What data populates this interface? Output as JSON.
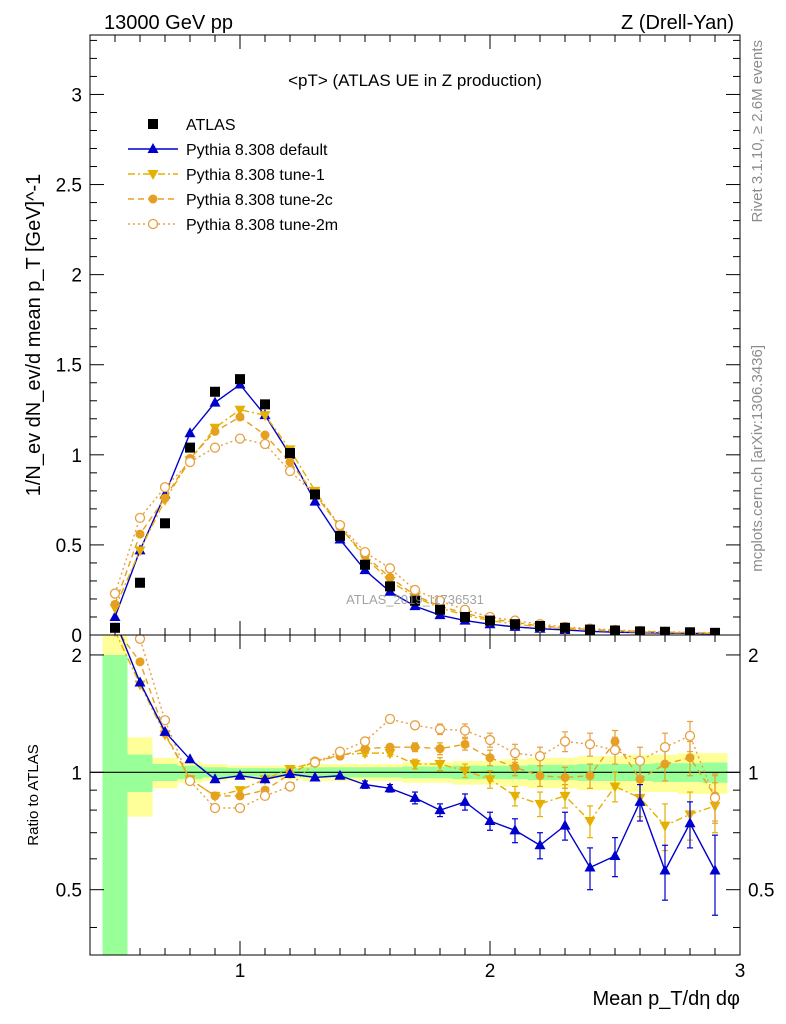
{
  "header": {
    "energy": "13000 GeV pp",
    "process": "Z (Drell-Yan)"
  },
  "side_labels": {
    "rivet": "Rivet 3.1.10, ≥ 2.6M events",
    "mcplots": "mcplots.cern.ch [arXiv:1306.3436]"
  },
  "chart_data": [
    {
      "type": "scatter",
      "panel": "main",
      "title": "<pT> (ATLAS UE in Z production)",
      "ylabel": "1/N_ev dN_ev/d mean p_T [GeV]^-1",
      "xlim": [
        0.4,
        3.0
      ],
      "ylim": [
        0,
        3.33
      ],
      "yticks": [
        "0",
        "0.5",
        "1",
        "1.5",
        "2",
        "2.5",
        "3"
      ],
      "watermark": "ATLAS_2019_I1736531",
      "legend_position": "top-left",
      "x": [
        0.5,
        0.6,
        0.7,
        0.8,
        0.9,
        1.0,
        1.1,
        1.2,
        1.3,
        1.4,
        1.5,
        1.6,
        1.7,
        1.8,
        1.9,
        2.0,
        2.1,
        2.2,
        2.3,
        2.4,
        2.5,
        2.6,
        2.7,
        2.8,
        2.9
      ],
      "series": [
        {
          "name": "ATLAS",
          "color": "#000000",
          "marker": "square",
          "line": "none",
          "values": [
            0.04,
            0.29,
            0.62,
            1.04,
            1.35,
            1.42,
            1.28,
            1.01,
            0.78,
            0.55,
            0.39,
            0.27,
            0.19,
            0.14,
            0.1,
            0.08,
            0.06,
            0.05,
            0.04,
            0.03,
            0.025,
            0.02,
            0.018,
            0.015,
            0.012
          ]
        },
        {
          "name": "Pythia 8.308 default",
          "color": "#0000cc",
          "marker": "triangle-up",
          "line": "solid",
          "values": [
            0.1,
            0.47,
            0.78,
            1.12,
            1.29,
            1.39,
            1.22,
            1.0,
            0.74,
            0.53,
            0.36,
            0.24,
            0.16,
            0.11,
            0.08,
            0.06,
            0.045,
            0.035,
            0.028,
            0.02,
            0.016,
            0.013,
            0.011,
            0.009,
            0.007
          ]
        },
        {
          "name": "Pythia 8.308 tune-1",
          "color": "#e6b000",
          "marker": "triangle-down",
          "line": "dashdot",
          "values": [
            0.15,
            0.47,
            0.75,
            0.97,
            1.15,
            1.25,
            1.22,
            1.03,
            0.8,
            0.6,
            0.43,
            0.3,
            0.21,
            0.15,
            0.11,
            0.08,
            0.06,
            0.045,
            0.035,
            0.027,
            0.021,
            0.017,
            0.014,
            0.011,
            0.009
          ]
        },
        {
          "name": "Pythia 8.308 tune-2c",
          "color": "#e6a020",
          "marker": "circle",
          "line": "dashed",
          "values": [
            0.17,
            0.56,
            0.76,
            0.98,
            1.13,
            1.21,
            1.11,
            0.96,
            0.78,
            0.6,
            0.44,
            0.32,
            0.22,
            0.16,
            0.12,
            0.09,
            0.07,
            0.05,
            0.04,
            0.03,
            0.025,
            0.02,
            0.016,
            0.013,
            0.01
          ]
        },
        {
          "name": "Pythia 8.308 tune-2m",
          "color": "#e6a040",
          "marker": "circle-open",
          "line": "dotted",
          "values": [
            0.23,
            0.65,
            0.82,
            0.96,
            1.04,
            1.09,
            1.06,
            0.91,
            0.78,
            0.61,
            0.46,
            0.37,
            0.25,
            0.19,
            0.14,
            0.1,
            0.08,
            0.06,
            0.045,
            0.035,
            0.028,
            0.022,
            0.018,
            0.015,
            0.012
          ]
        }
      ]
    },
    {
      "type": "scatter",
      "panel": "ratio",
      "ylabel": "Ratio to ATLAS",
      "xlabel": "Mean p_T/dη dφ",
      "xlim": [
        0.4,
        3.0
      ],
      "ylim": [
        0.34,
        2.25
      ],
      "yticks_left": [
        "0.5",
        "1",
        "2"
      ],
      "yticks_right": [
        "0.5",
        "1",
        "2"
      ],
      "xticks": [
        "1",
        "2",
        "3"
      ],
      "reference_line": 1,
      "x": [
        0.5,
        0.6,
        0.7,
        0.8,
        0.9,
        1.0,
        1.1,
        1.2,
        1.3,
        1.4,
        1.5,
        1.6,
        1.7,
        1.8,
        1.9,
        2.0,
        2.1,
        2.2,
        2.3,
        2.4,
        2.5,
        2.6,
        2.7,
        2.8,
        2.9
      ],
      "bands": {
        "yellow_half_width": [
          1.5,
          0.23,
          0.09,
          0.06,
          0.05,
          0.04,
          0.04,
          0.04,
          0.05,
          0.05,
          0.05,
          0.05,
          0.06,
          0.06,
          0.07,
          0.07,
          0.08,
          0.09,
          0.09,
          0.1,
          0.1,
          0.11,
          0.11,
          0.12,
          0.12
        ],
        "green_half_width": [
          1.0,
          0.11,
          0.05,
          0.04,
          0.03,
          0.025,
          0.025,
          0.025,
          0.03,
          0.03,
          0.03,
          0.03,
          0.035,
          0.035,
          0.04,
          0.04,
          0.04,
          0.045,
          0.045,
          0.05,
          0.05,
          0.05,
          0.055,
          0.055,
          0.06
        ]
      },
      "series": [
        {
          "name": "Pythia 8.308 default",
          "color": "#0000cc",
          "marker": "triangle-up",
          "line": "solid",
          "values": [
            2.45,
            1.7,
            1.27,
            1.08,
            0.96,
            0.98,
            0.96,
            0.99,
            0.97,
            0.98,
            0.93,
            0.91,
            0.86,
            0.8,
            0.84,
            0.75,
            0.71,
            0.65,
            0.73,
            0.57,
            0.61,
            0.84,
            0.56,
            0.74,
            0.56
          ],
          "errors": [
            0.04,
            0.01,
            0.01,
            0.01,
            0.01,
            0.01,
            0.01,
            0.01,
            0.01,
            0.01,
            0.02,
            0.02,
            0.03,
            0.03,
            0.04,
            0.04,
            0.05,
            0.05,
            0.06,
            0.07,
            0.07,
            0.09,
            0.09,
            0.1,
            0.13
          ]
        },
        {
          "name": "Pythia 8.308 tune-1",
          "color": "#e6b000",
          "marker": "triangle-down",
          "line": "dashdot",
          "values": [
            2.3,
            1.68,
            1.25,
            0.96,
            0.87,
            0.9,
            0.96,
            1.02,
            1.06,
            1.11,
            1.12,
            1.12,
            1.05,
            1.05,
            1.01,
            0.96,
            0.87,
            0.83,
            0.87,
            0.75,
            0.92,
            0.86,
            0.73,
            0.78,
            0.82
          ],
          "errors": [
            0.04,
            0.01,
            0.01,
            0.01,
            0.01,
            0.01,
            0.01,
            0.01,
            0.01,
            0.02,
            0.02,
            0.02,
            0.03,
            0.04,
            0.04,
            0.05,
            0.05,
            0.06,
            0.06,
            0.07,
            0.08,
            0.09,
            0.1,
            0.11,
            0.12
          ]
        },
        {
          "name": "Pythia 8.308 tune-2c",
          "color": "#e6a020",
          "marker": "circle",
          "line": "dashed",
          "values": [
            2.35,
            1.92,
            1.26,
            0.96,
            0.87,
            0.87,
            0.9,
            0.99,
            1.07,
            1.1,
            1.15,
            1.16,
            1.16,
            1.15,
            1.18,
            1.09,
            1.03,
            0.98,
            0.97,
            0.98,
            1.2,
            0.96,
            1.05,
            1.09,
            0.87
          ],
          "errors": [
            0.04,
            0.01,
            0.01,
            0.01,
            0.01,
            0.01,
            0.01,
            0.01,
            0.01,
            0.02,
            0.02,
            0.02,
            0.03,
            0.04,
            0.04,
            0.05,
            0.05,
            0.06,
            0.06,
            0.07,
            0.08,
            0.09,
            0.1,
            0.11,
            0.12
          ]
        },
        {
          "name": "Pythia 8.308 tune-2m",
          "color": "#e6a040",
          "marker": "circle-open",
          "line": "dotted",
          "values": [
            2.4,
            2.2,
            1.36,
            0.95,
            0.81,
            0.81,
            0.87,
            0.92,
            1.06,
            1.13,
            1.2,
            1.37,
            1.32,
            1.29,
            1.28,
            1.21,
            1.12,
            1.1,
            1.2,
            1.18,
            1.14,
            1.07,
            1.16,
            1.24,
            0.86
          ],
          "errors": [
            0.04,
            0.01,
            0.01,
            0.01,
            0.01,
            0.01,
            0.01,
            0.01,
            0.02,
            0.02,
            0.02,
            0.03,
            0.03,
            0.04,
            0.05,
            0.05,
            0.06,
            0.06,
            0.07,
            0.08,
            0.09,
            0.09,
            0.1,
            0.11,
            0.12
          ]
        }
      ]
    }
  ]
}
